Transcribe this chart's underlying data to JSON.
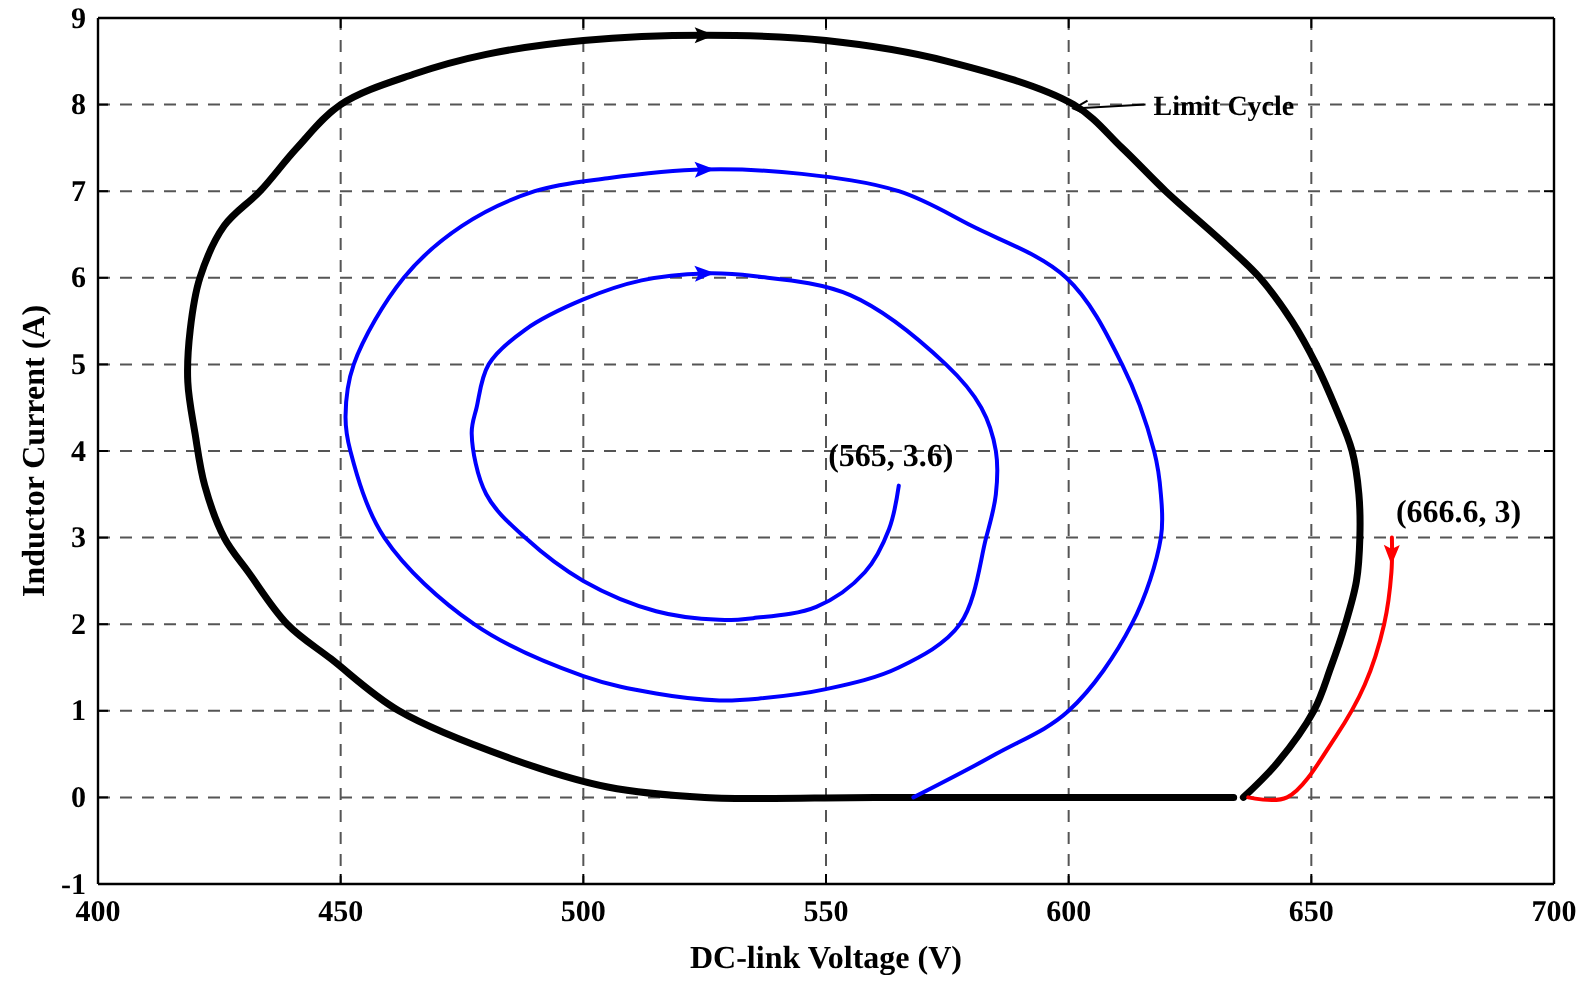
{
  "chart_data": {
    "type": "line",
    "xlabel": "DC-link Voltage (V)",
    "ylabel": "Inductor Current (A)",
    "xlim": [
      400,
      700
    ],
    "xticks": [
      400,
      450,
      500,
      550,
      600,
      650,
      700
    ],
    "ylim": [
      -1,
      9
    ],
    "yticks": [
      -1,
      0,
      1,
      2,
      3,
      4,
      5,
      6,
      7,
      8,
      9
    ],
    "grid": true,
    "marker": "none",
    "line_style": "solid",
    "series": [
      {
        "color": "#000000",
        "x": [
          634,
          600,
          560,
          525,
          505,
          485,
          462,
          448,
          439,
          431,
          426,
          422,
          420,
          418.5,
          419,
          421,
          426,
          433.4,
          441,
          450,
          465,
          480,
          500,
          525,
          550,
          575,
          601,
          611,
          620,
          632,
          639.4,
          646,
          651,
          655,
          658.4,
          659.8,
          660,
          659.3,
          657,
          654,
          650.5,
          643,
          636
        ],
        "values": [
          0,
          0,
          0,
          0,
          0.12,
          0.45,
          1,
          1.6,
          2,
          2.6,
          3,
          3.6,
          4.2,
          4.8,
          5.4,
          6,
          6.6,
          7,
          7.5,
          8,
          8.35,
          8.58,
          8.74,
          8.8,
          8.74,
          8.5,
          8,
          7.5,
          7,
          6.4,
          6,
          5.5,
          5,
          4.5,
          4,
          3.5,
          3,
          2.5,
          2,
          1.5,
          1,
          0.4,
          0
        ]
      },
      {
        "color": "#0000ff",
        "x": [
          565,
          563,
          558,
          548,
          535,
          528,
          515,
          500,
          488,
          480,
          477,
          478,
          480.5,
          488,
          500,
          512,
          525,
          535,
          555,
          574.7,
          582,
          585,
          585,
          583,
          577.6,
          565,
          550,
          536,
          528,
          515,
          500,
          477.5,
          459,
          452,
          451,
          452.7,
          463,
          475,
          490,
          505,
          525,
          545,
          565,
          580,
          599.5,
          611,
          617.6,
          619,
          619,
          613,
          600,
          585,
          568
        ],
        "values": [
          3.6,
          3.1,
          2.6,
          2.2,
          2.07,
          2.05,
          2.15,
          2.5,
          3,
          3.5,
          4.2,
          4.5,
          5,
          5.4,
          5.75,
          5.97,
          6.05,
          6.02,
          5.8,
          5,
          4.5,
          4,
          3.5,
          3,
          2,
          1.5,
          1.25,
          1.14,
          1.12,
          1.2,
          1.4,
          2,
          3,
          4,
          4.4,
          5,
          6,
          6.6,
          7,
          7.15,
          7.25,
          7.2,
          7,
          6.6,
          6,
          5,
          4,
          3.5,
          3,
          2,
          1,
          0.5,
          0
        ]
      },
      {
        "color": "#ff0000",
        "x": [
          666.6,
          666.5,
          665,
          661,
          655,
          645,
          637
        ],
        "values": [
          3,
          2.6,
          2,
          1.3,
          0.7,
          0,
          0
        ]
      }
    ],
    "annotations": [
      {
        "text": "Limit Cycle",
        "x": 601,
        "y": 8
      },
      {
        "text": "(565, 3.6)",
        "x": 565,
        "y": 3.6
      },
      {
        "text": "(666.6, 3)",
        "x": 666.6,
        "y": 3
      }
    ]
  }
}
